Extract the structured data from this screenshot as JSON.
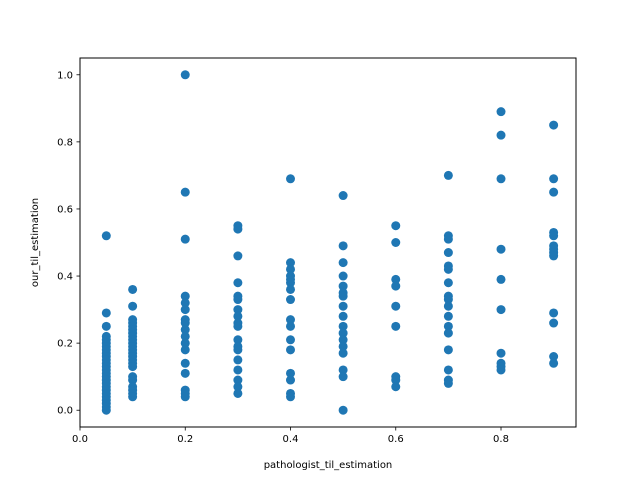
{
  "chart_data": {
    "type": "scatter",
    "title": "",
    "xlabel": "pathologist_til_estimation",
    "ylabel": "our_til_estimation",
    "xlim": [
      0.0,
      0.9425
    ],
    "ylim": [
      -0.05,
      1.05
    ],
    "xticks": [
      "0.0",
      "0.2",
      "0.4",
      "0.6",
      "0.8"
    ],
    "xtick_values": [
      0.0,
      0.2,
      0.4,
      0.6,
      0.8
    ],
    "yticks": [
      "0.0",
      "0.2",
      "0.4",
      "0.6",
      "0.8",
      "1.0"
    ],
    "ytick_values": [
      0.0,
      0.2,
      0.4,
      0.6,
      0.8,
      1.0
    ],
    "grid": false,
    "color": "#1f77b4",
    "series": [
      {
        "points": [
          [
            0.05,
            0.52
          ],
          [
            0.05,
            0.29
          ],
          [
            0.05,
            0.25
          ],
          [
            0.05,
            0.22
          ],
          [
            0.05,
            0.21
          ],
          [
            0.05,
            0.2
          ],
          [
            0.05,
            0.19
          ],
          [
            0.05,
            0.18
          ],
          [
            0.05,
            0.17
          ],
          [
            0.05,
            0.16
          ],
          [
            0.05,
            0.15
          ],
          [
            0.05,
            0.14
          ],
          [
            0.05,
            0.13
          ],
          [
            0.05,
            0.12
          ],
          [
            0.05,
            0.11
          ],
          [
            0.05,
            0.1
          ],
          [
            0.05,
            0.09
          ],
          [
            0.05,
            0.08
          ],
          [
            0.05,
            0.07
          ],
          [
            0.05,
            0.06
          ],
          [
            0.05,
            0.05
          ],
          [
            0.05,
            0.04
          ],
          [
            0.05,
            0.03
          ],
          [
            0.05,
            0.02
          ],
          [
            0.05,
            0.01
          ],
          [
            0.05,
            0.0
          ],
          [
            0.1,
            0.36
          ],
          [
            0.1,
            0.31
          ],
          [
            0.1,
            0.27
          ],
          [
            0.1,
            0.26
          ],
          [
            0.1,
            0.25
          ],
          [
            0.1,
            0.24
          ],
          [
            0.1,
            0.23
          ],
          [
            0.1,
            0.22
          ],
          [
            0.1,
            0.21
          ],
          [
            0.1,
            0.2
          ],
          [
            0.1,
            0.19
          ],
          [
            0.1,
            0.18
          ],
          [
            0.1,
            0.17
          ],
          [
            0.1,
            0.16
          ],
          [
            0.1,
            0.15
          ],
          [
            0.1,
            0.14
          ],
          [
            0.1,
            0.13
          ],
          [
            0.1,
            0.1
          ],
          [
            0.1,
            0.09
          ],
          [
            0.1,
            0.07
          ],
          [
            0.1,
            0.06
          ],
          [
            0.1,
            0.05
          ],
          [
            0.1,
            0.04
          ],
          [
            0.2,
            1.0
          ],
          [
            0.2,
            0.65
          ],
          [
            0.2,
            0.51
          ],
          [
            0.2,
            0.34
          ],
          [
            0.2,
            0.32
          ],
          [
            0.2,
            0.3
          ],
          [
            0.2,
            0.27
          ],
          [
            0.2,
            0.26
          ],
          [
            0.2,
            0.24
          ],
          [
            0.2,
            0.22
          ],
          [
            0.2,
            0.2
          ],
          [
            0.2,
            0.18
          ],
          [
            0.2,
            0.14
          ],
          [
            0.2,
            0.11
          ],
          [
            0.2,
            0.06
          ],
          [
            0.2,
            0.05
          ],
          [
            0.2,
            0.04
          ],
          [
            0.3,
            0.55
          ],
          [
            0.3,
            0.54
          ],
          [
            0.3,
            0.46
          ],
          [
            0.3,
            0.38
          ],
          [
            0.3,
            0.34
          ],
          [
            0.3,
            0.33
          ],
          [
            0.3,
            0.3
          ],
          [
            0.3,
            0.28
          ],
          [
            0.3,
            0.26
          ],
          [
            0.3,
            0.25
          ],
          [
            0.3,
            0.21
          ],
          [
            0.3,
            0.19
          ],
          [
            0.3,
            0.18
          ],
          [
            0.3,
            0.15
          ],
          [
            0.3,
            0.12
          ],
          [
            0.3,
            0.09
          ],
          [
            0.3,
            0.07
          ],
          [
            0.3,
            0.05
          ],
          [
            0.4,
            0.69
          ],
          [
            0.4,
            0.44
          ],
          [
            0.4,
            0.42
          ],
          [
            0.4,
            0.4
          ],
          [
            0.4,
            0.39
          ],
          [
            0.4,
            0.38
          ],
          [
            0.4,
            0.36
          ],
          [
            0.4,
            0.33
          ],
          [
            0.4,
            0.27
          ],
          [
            0.4,
            0.25
          ],
          [
            0.4,
            0.21
          ],
          [
            0.4,
            0.18
          ],
          [
            0.4,
            0.11
          ],
          [
            0.4,
            0.09
          ],
          [
            0.4,
            0.05
          ],
          [
            0.4,
            0.04
          ],
          [
            0.5,
            0.64
          ],
          [
            0.5,
            0.49
          ],
          [
            0.5,
            0.44
          ],
          [
            0.5,
            0.4
          ],
          [
            0.5,
            0.37
          ],
          [
            0.5,
            0.35
          ],
          [
            0.5,
            0.34
          ],
          [
            0.5,
            0.31
          ],
          [
            0.5,
            0.28
          ],
          [
            0.5,
            0.25
          ],
          [
            0.5,
            0.23
          ],
          [
            0.5,
            0.21
          ],
          [
            0.5,
            0.19
          ],
          [
            0.5,
            0.17
          ],
          [
            0.5,
            0.12
          ],
          [
            0.5,
            0.1
          ],
          [
            0.5,
            0.0
          ],
          [
            0.6,
            0.55
          ],
          [
            0.6,
            0.5
          ],
          [
            0.6,
            0.39
          ],
          [
            0.6,
            0.37
          ],
          [
            0.6,
            0.31
          ],
          [
            0.6,
            0.25
          ],
          [
            0.6,
            0.1
          ],
          [
            0.6,
            0.09
          ],
          [
            0.6,
            0.07
          ],
          [
            0.7,
            0.7
          ],
          [
            0.7,
            0.52
          ],
          [
            0.7,
            0.51
          ],
          [
            0.7,
            0.47
          ],
          [
            0.7,
            0.43
          ],
          [
            0.7,
            0.42
          ],
          [
            0.7,
            0.38
          ],
          [
            0.7,
            0.34
          ],
          [
            0.7,
            0.33
          ],
          [
            0.7,
            0.31
          ],
          [
            0.7,
            0.28
          ],
          [
            0.7,
            0.25
          ],
          [
            0.7,
            0.23
          ],
          [
            0.7,
            0.18
          ],
          [
            0.7,
            0.12
          ],
          [
            0.7,
            0.09
          ],
          [
            0.7,
            0.08
          ],
          [
            0.8,
            0.89
          ],
          [
            0.8,
            0.82
          ],
          [
            0.8,
            0.69
          ],
          [
            0.8,
            0.48
          ],
          [
            0.8,
            0.39
          ],
          [
            0.8,
            0.3
          ],
          [
            0.8,
            0.17
          ],
          [
            0.8,
            0.14
          ],
          [
            0.8,
            0.13
          ],
          [
            0.8,
            0.12
          ],
          [
            0.9,
            0.85
          ],
          [
            0.9,
            0.69
          ],
          [
            0.9,
            0.65
          ],
          [
            0.9,
            0.53
          ],
          [
            0.9,
            0.52
          ],
          [
            0.9,
            0.49
          ],
          [
            0.9,
            0.48
          ],
          [
            0.9,
            0.47
          ],
          [
            0.9,
            0.46
          ],
          [
            0.9,
            0.29
          ],
          [
            0.9,
            0.26
          ],
          [
            0.9,
            0.16
          ],
          [
            0.9,
            0.14
          ]
        ]
      }
    ]
  }
}
